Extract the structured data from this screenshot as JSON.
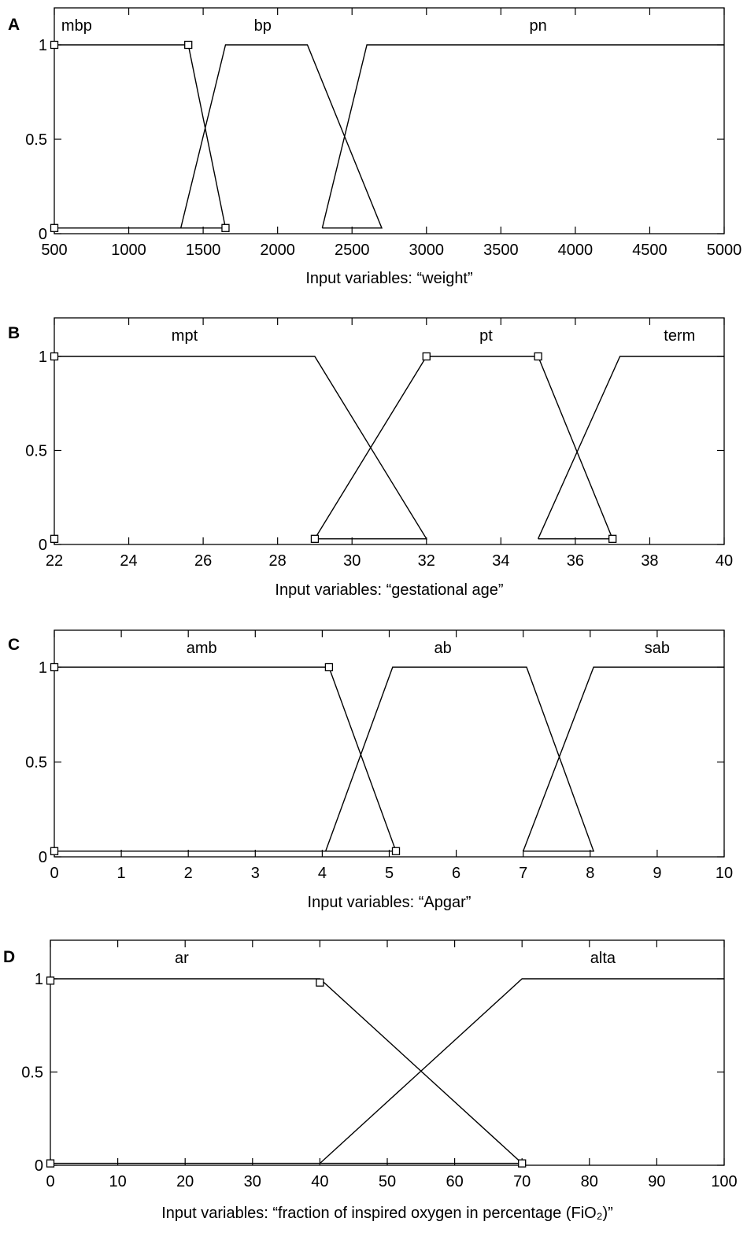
{
  "chart_data": [
    {
      "type": "line",
      "panel": "A",
      "xlabel": "Input variables: “weight”",
      "xlim": [
        500,
        5000
      ],
      "ylim": [
        0,
        1.2
      ],
      "xticks": [
        500,
        1000,
        1500,
        2000,
        2500,
        3000,
        3500,
        4000,
        4500,
        5000
      ],
      "yticks": [
        0,
        0.5,
        1
      ],
      "grid": false,
      "sets": [
        {
          "label": "mbp",
          "label_at": 650,
          "points": [
            [
              500,
              1
            ],
            [
              1400,
              1
            ],
            [
              1650,
              0.03
            ],
            [
              500,
              0.03
            ]
          ]
        },
        {
          "label": "bp",
          "label_at": 1900,
          "points": [
            [
              1350,
              0.03
            ],
            [
              1650,
              1
            ],
            [
              2200,
              1
            ],
            [
              2700,
              0.03
            ],
            [
              2300,
              0.03
            ]
          ]
        },
        {
          "label": "pn",
          "label_at": 3750,
          "points": [
            [
              2300,
              0.03
            ],
            [
              2600,
              1
            ],
            [
              5000,
              1
            ]
          ]
        }
      ],
      "markers": [
        [
          500,
          1
        ],
        [
          1400,
          1
        ],
        [
          1650,
          0.03
        ],
        [
          500,
          0.03
        ]
      ]
    },
    {
      "type": "line",
      "panel": "B",
      "xlabel": "Input variables: “gestational age”",
      "xlim": [
        22,
        40
      ],
      "ylim": [
        0,
        1.2
      ],
      "xticks": [
        22,
        24,
        26,
        28,
        30,
        32,
        34,
        36,
        38,
        40
      ],
      "yticks": [
        0,
        0.5,
        1
      ],
      "grid": false,
      "sets": [
        {
          "label": "mpt",
          "label_at": 25.5,
          "points": [
            [
              22,
              1
            ],
            [
              29,
              1
            ],
            [
              32,
              0.03
            ],
            [
              29,
              0.03
            ]
          ]
        },
        {
          "label": "pt",
          "label_at": 33.6,
          "points": [
            [
              29,
              0.03
            ],
            [
              32,
              1
            ],
            [
              35,
              1
            ],
            [
              37,
              0.03
            ],
            [
              35,
              0.03
            ]
          ]
        },
        {
          "label": "term",
          "label_at": 38.8,
          "points": [
            [
              35,
              0.03
            ],
            [
              37.2,
              1
            ],
            [
              40,
              1
            ]
          ]
        }
      ],
      "markers": [
        [
          22,
          1
        ],
        [
          32,
          1
        ],
        [
          35,
          1
        ],
        [
          37,
          0.03
        ],
        [
          29,
          0.03
        ],
        [
          22,
          0.03
        ]
      ]
    },
    {
      "type": "line",
      "panel": "C",
      "xlabel": "Input variables: “Apgar”",
      "xlim": [
        0,
        10
      ],
      "ylim": [
        0,
        1.2
      ],
      "xticks": [
        0,
        1,
        2,
        3,
        4,
        5,
        6,
        7,
        8,
        9,
        10
      ],
      "yticks": [
        0,
        0.5,
        1
      ],
      "grid": false,
      "sets": [
        {
          "label": "amb",
          "label_at": 2.2,
          "points": [
            [
              0,
              1
            ],
            [
              4.1,
              1
            ],
            [
              5.1,
              0.03
            ],
            [
              0,
              0.03
            ]
          ]
        },
        {
          "label": "ab",
          "label_at": 5.8,
          "points": [
            [
              4.05,
              0.03
            ],
            [
              5.05,
              1
            ],
            [
              7.05,
              1
            ],
            [
              8.05,
              0.03
            ],
            [
              7.0,
              0.03
            ]
          ]
        },
        {
          "label": "sab",
          "label_at": 9.0,
          "points": [
            [
              7.0,
              0.03
            ],
            [
              8.05,
              1
            ],
            [
              10,
              1
            ]
          ]
        }
      ],
      "markers": [
        [
          0,
          1
        ],
        [
          4.1,
          1
        ],
        [
          5.1,
          0.03
        ],
        [
          0,
          0.03
        ]
      ]
    },
    {
      "type": "line",
      "panel": "D",
      "xlabel": "Input variables: “fraction of inspired oxygen in percentage (FiO₂)”",
      "xlim": [
        0,
        100
      ],
      "ylim": [
        0,
        1.2
      ],
      "xticks": [
        0,
        10,
        20,
        30,
        40,
        50,
        60,
        70,
        80,
        90,
        100
      ],
      "yticks": [
        0,
        0.5,
        1
      ],
      "grid": false,
      "sets": [
        {
          "label": "ar",
          "label_at": 19.5,
          "points": [
            [
              0,
              1
            ],
            [
              40,
              1
            ],
            [
              70,
              0.01
            ],
            [
              0,
              0.01
            ]
          ]
        },
        {
          "label": "alta",
          "label_at": 82,
          "points": [
            [
              40,
              0.01
            ],
            [
              70,
              1
            ],
            [
              100,
              1
            ]
          ]
        }
      ],
      "markers": [
        [
          0,
          0.99
        ],
        [
          40,
          0.98
        ],
        [
          70,
          0.01
        ],
        [
          0,
          0.01
        ]
      ]
    }
  ]
}
